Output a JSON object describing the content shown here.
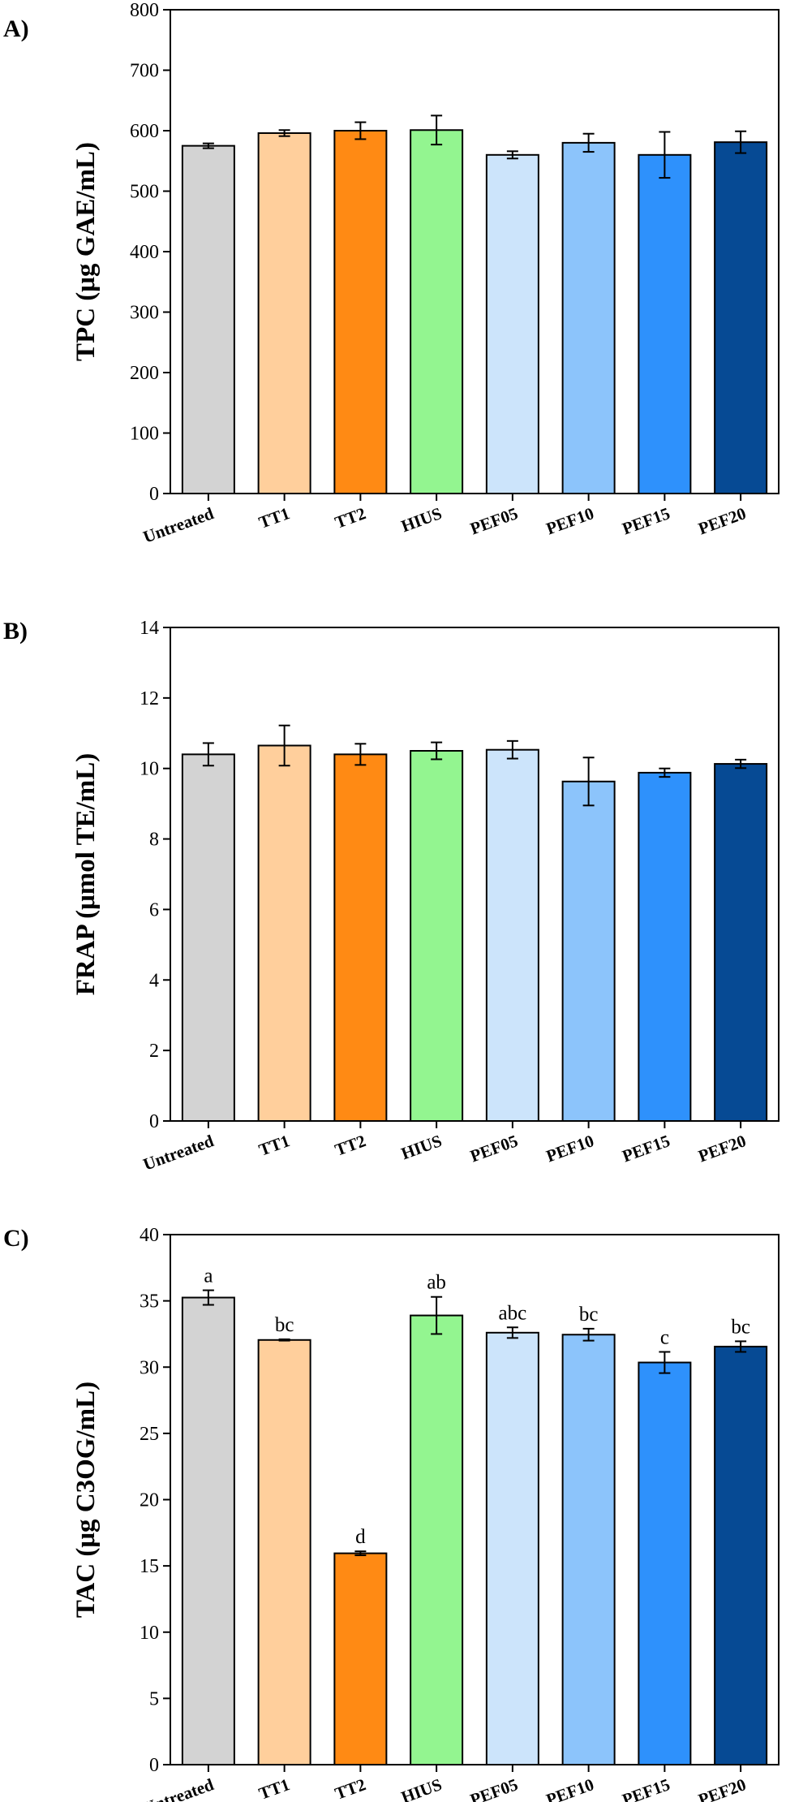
{
  "chart_data": [
    {
      "type": "bar",
      "panel": "A)",
      "categories": [
        "Untreated",
        "TT1",
        "TT2",
        "HIUS",
        "PEF05",
        "PEF10",
        "PEF15",
        "PEF20"
      ],
      "values": [
        575,
        596,
        600,
        601,
        560,
        580,
        560,
        581
      ],
      "errors": [
        4,
        5,
        14,
        24,
        6,
        15,
        38,
        18
      ],
      "significance": [],
      "ylabel": "TPC (μg GAE/mL)",
      "xlabel": "",
      "ylim": [
        0,
        800
      ],
      "yticks": [
        0,
        100,
        200,
        300,
        400,
        500,
        600,
        700,
        800
      ],
      "ytick_labels": [
        "0",
        "100",
        "200",
        "300",
        "400",
        "500",
        "600",
        "700",
        "800"
      ],
      "colors": [
        "#d3d3d3",
        "#ffcf9c",
        "#ff8a14",
        "#93f590",
        "#cce4fb",
        "#8cc4fb",
        "#2e91fc",
        "#064a94"
      ],
      "grid": false,
      "legend": "none"
    },
    {
      "type": "bar",
      "panel": "B)",
      "categories": [
        "Untreated",
        "TT1",
        "TT2",
        "HIUS",
        "PEF05",
        "PEF10",
        "PEF15",
        "PEF20"
      ],
      "values": [
        10.4,
        10.65,
        10.4,
        10.5,
        10.53,
        9.63,
        9.88,
        10.13
      ],
      "errors": [
        0.32,
        0.57,
        0.3,
        0.24,
        0.25,
        0.68,
        0.12,
        0.12
      ],
      "significance": [],
      "ylabel": "FRAP (μmol TE/mL)",
      "xlabel": "",
      "ylim": [
        0,
        14
      ],
      "yticks": [
        0,
        2,
        4,
        6,
        8,
        10,
        12,
        14
      ],
      "ytick_labels": [
        "0",
        "2",
        "4",
        "6",
        "8",
        "10",
        "12",
        "14"
      ],
      "colors": [
        "#d3d3d3",
        "#ffcf9c",
        "#ff8a14",
        "#93f590",
        "#cce4fb",
        "#8cc4fb",
        "#2e91fc",
        "#064a94"
      ],
      "grid": false,
      "legend": "none"
    },
    {
      "type": "bar",
      "panel": "C)",
      "categories": [
        "Untreated",
        "TT1",
        "TT2",
        "HIUS",
        "PEF05",
        "PEF10",
        "PEF15",
        "PEF20"
      ],
      "values": [
        35.25,
        32.05,
        15.95,
        33.9,
        32.6,
        32.45,
        30.35,
        31.55
      ],
      "errors": [
        0.55,
        0.05,
        0.15,
        1.4,
        0.4,
        0.45,
        0.8,
        0.4
      ],
      "significance": [
        "a",
        "bc",
        "d",
        "ab",
        "abc",
        "bc",
        "c",
        "bc"
      ],
      "ylabel": "TAC (μg C3OG/mL)",
      "xlabel": "",
      "ylim": [
        0,
        40
      ],
      "yticks": [
        0,
        5,
        10,
        15,
        20,
        25,
        30,
        35,
        40
      ],
      "ytick_labels": [
        "0",
        "5",
        "10",
        "15",
        "20",
        "25",
        "30",
        "35",
        "40"
      ],
      "colors": [
        "#d3d3d3",
        "#ffcf9c",
        "#ff8a14",
        "#93f590",
        "#cce4fb",
        "#8cc4fb",
        "#2e91fc",
        "#064a94"
      ],
      "grid": false,
      "legend": "none"
    }
  ]
}
